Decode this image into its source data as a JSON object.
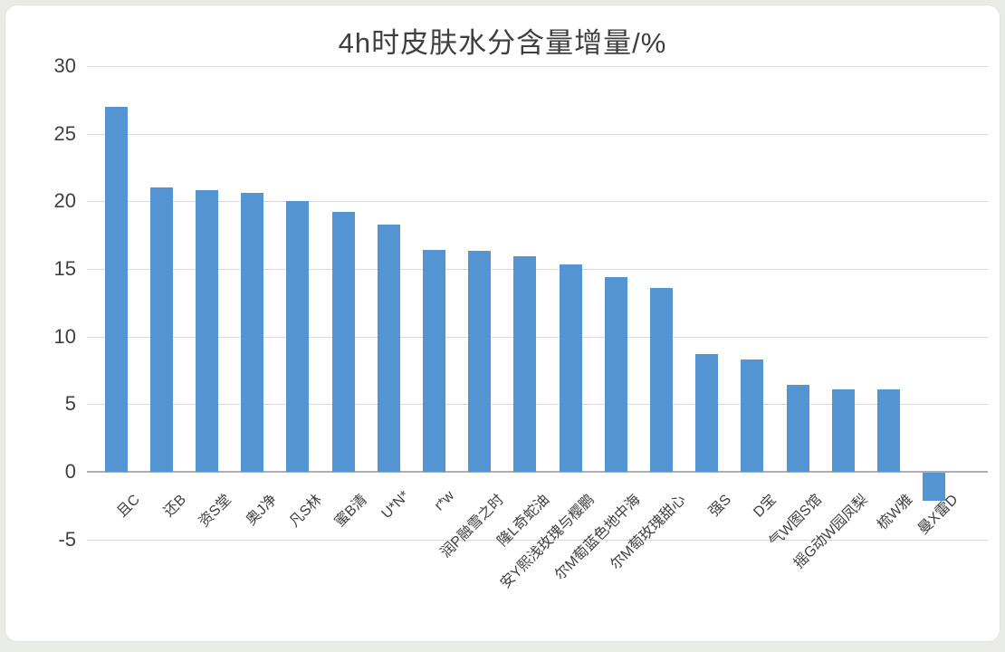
{
  "chart_data": {
    "type": "bar",
    "title": "4h时皮肤水分含量增量/%",
    "categories": [
      "且C",
      "还B",
      "资S堂",
      "奥J净",
      "凡S林",
      "蜜B清",
      "U*N*",
      "r*w",
      "润P融雪之时",
      "隆L奇蛇油",
      "安Y熙浅玫瑰与樱鹏",
      "尔M萄蓝色地中海",
      "尔M萄玫瑰甜心",
      "强S",
      "D宝",
      "气W图S馆",
      "摇G动W园凤梨",
      "梳W雅",
      "曼X雷D"
    ],
    "values": [
      27.0,
      21.0,
      20.8,
      20.6,
      20.0,
      19.2,
      18.3,
      16.4,
      16.3,
      15.9,
      15.3,
      14.4,
      13.6,
      8.7,
      8.3,
      6.4,
      6.1,
      6.1,
      -2.1
    ],
    "xlabel": "",
    "ylabel": "",
    "ylim": [
      -5,
      30
    ],
    "yticks": [
      30,
      25,
      20,
      15,
      10,
      5,
      0,
      -5
    ],
    "grid": true,
    "legend": "none",
    "colors": {
      "bar": "#5594d2",
      "gridline": "#d9d9d9",
      "zero_axis": "#aeaeae",
      "title_text": "#3f3f3f",
      "tick_text": "#404040",
      "panel_bg": "#ffffff",
      "page_bg": "#e9ebe7"
    }
  }
}
